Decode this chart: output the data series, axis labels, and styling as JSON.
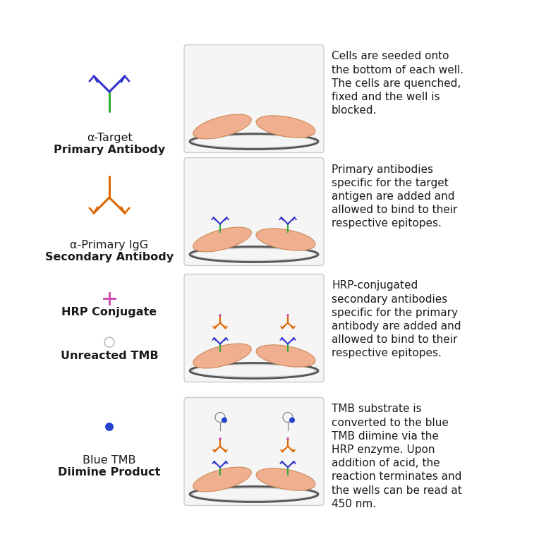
{
  "bg_color": "#ffffff",
  "text_color": "#1a1a1a",
  "well_fill": "#f5f5f5",
  "well_border": "#aaaaaa",
  "well_bottom_dark": "#666666",
  "cell_fill": "#f0b090",
  "cell_edge": "#cc8855",
  "green_color": "#33aa33",
  "blue_color": "#3333cc",
  "orange_color": "#dd6600",
  "pink_color": "#cc44aa",
  "dark_blue_dot": "#2244cc",
  "gray_circle": "#aaaaaa",
  "rows": [
    {
      "label_line1": "α-Target",
      "label_line2": "Primary Antibody",
      "label2_bold": true,
      "well_type": "cells_only",
      "desc": "Cells are seeded onto\nthe bottom of each well.\nThe cells are quenched,\nfixed and the well is\nblocked."
    },
    {
      "label_line1": "α-Primary IgG",
      "label_line2": "Secondary Antibody",
      "label2_bold": true,
      "well_type": "primary_ab",
      "desc": "Primary antibodies\nspecific for the target\nantigen are added and\nallowed to bind to their\nrespective epitopes."
    },
    {
      "label_line1": "HRP Conjugate",
      "label_line2": "",
      "label_line3": "Unreacted TMB",
      "label2_bold": false,
      "well_type": "secondary_ab",
      "desc": "HRP-conjugated\nsecondary antibodies\nspecific for the primary\nantibody are added and\nallowed to bind to their\nrespective epitopes."
    },
    {
      "label_line1": "Blue TMB",
      "label_line2": "Diimine Product",
      "label2_bold": true,
      "well_type": "tmb_product",
      "desc": "TMB substrate is\nconverted to the blue\nTMB diimine via the\nHRP enzyme. Upon\naddition of acid, the\nreaction terminates and\nthe wells can be read at\n450 nm."
    }
  ]
}
